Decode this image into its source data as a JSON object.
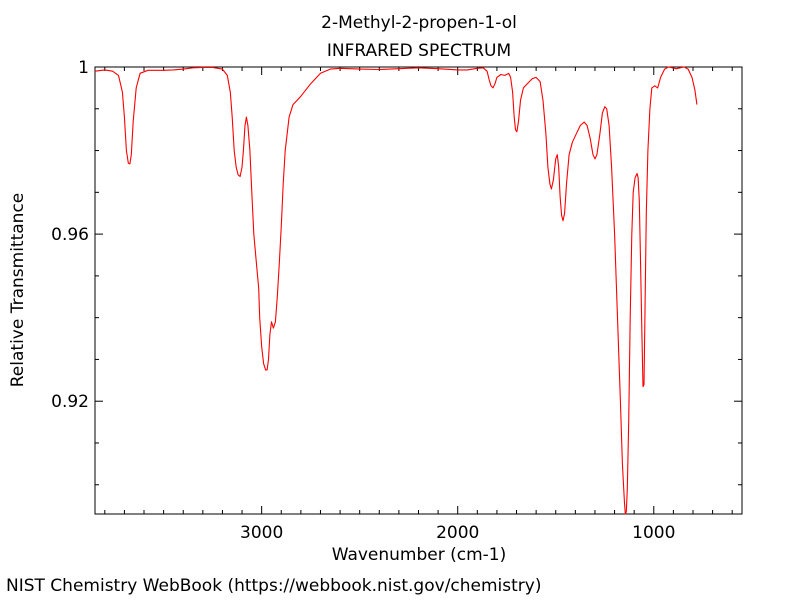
{
  "chart_data": {
    "type": "line",
    "title": "2-Methyl-2-propen-1-ol",
    "subtitle": "INFRARED SPECTRUM",
    "xlabel": "Wavenumber (cm-1)",
    "ylabel": "Relative Transmittance",
    "xlim": [
      3850,
      550
    ],
    "ylim": [
      0.893,
      1.0
    ],
    "x_ticks": [
      3000,
      2000,
      1000
    ],
    "x_tick_labels": [
      "3000",
      "2000",
      "1000"
    ],
    "y_ticks": [
      1.0,
      0.96,
      0.92
    ],
    "y_tick_labels": [
      "1",
      "0.96",
      "0.92"
    ],
    "grid": false,
    "legend": "none",
    "series": [
      {
        "color": "#ff0000",
        "points": [
          [
            3850,
            0.999
          ],
          [
            3800,
            0.9993
          ],
          [
            3760,
            0.999
          ],
          [
            3730,
            0.998
          ],
          [
            3710,
            0.994
          ],
          [
            3700,
            0.988
          ],
          [
            3690,
            0.98
          ],
          [
            3680,
            0.977
          ],
          [
            3672,
            0.9768
          ],
          [
            3665,
            0.979
          ],
          [
            3655,
            0.987
          ],
          [
            3640,
            0.995
          ],
          [
            3620,
            0.9985
          ],
          [
            3580,
            0.9992
          ],
          [
            3500,
            0.9992
          ],
          [
            3450,
            0.9993
          ],
          [
            3400,
            0.9995
          ],
          [
            3350,
            0.9998
          ],
          [
            3300,
            0.9999
          ],
          [
            3250,
            0.9999
          ],
          [
            3200,
            0.9995
          ],
          [
            3175,
            0.998
          ],
          [
            3160,
            0.994
          ],
          [
            3150,
            0.988
          ],
          [
            3140,
            0.98
          ],
          [
            3130,
            0.976
          ],
          [
            3120,
            0.9742
          ],
          [
            3110,
            0.9738
          ],
          [
            3100,
            0.976
          ],
          [
            3093,
            0.98
          ],
          [
            3085,
            0.986
          ],
          [
            3078,
            0.988
          ],
          [
            3070,
            0.986
          ],
          [
            3060,
            0.98
          ],
          [
            3050,
            0.97
          ],
          [
            3040,
            0.96
          ],
          [
            3025,
            0.952
          ],
          [
            3015,
            0.947
          ],
          [
            3010,
            0.94
          ],
          [
            3000,
            0.933
          ],
          [
            2990,
            0.929
          ],
          [
            2980,
            0.9275
          ],
          [
            2972,
            0.9275
          ],
          [
            2965,
            0.93
          ],
          [
            2958,
            0.936
          ],
          [
            2950,
            0.939
          ],
          [
            2940,
            0.9375
          ],
          [
            2930,
            0.939
          ],
          [
            2920,
            0.945
          ],
          [
            2910,
            0.953
          ],
          [
            2900,
            0.962
          ],
          [
            2890,
            0.972
          ],
          [
            2880,
            0.98
          ],
          [
            2860,
            0.988
          ],
          [
            2840,
            0.991
          ],
          [
            2800,
            0.993
          ],
          [
            2750,
            0.996
          ],
          [
            2700,
            0.9985
          ],
          [
            2650,
            0.9995
          ],
          [
            2600,
            0.9997
          ],
          [
            2500,
            0.9995
          ],
          [
            2400,
            0.9994
          ],
          [
            2300,
            0.9996
          ],
          [
            2200,
            0.9998
          ],
          [
            2100,
            0.9996
          ],
          [
            2000,
            0.9993
          ],
          [
            1950,
            0.9993
          ],
          [
            1900,
            0.9997
          ],
          [
            1870,
            0.9998
          ],
          [
            1850,
            0.999
          ],
          [
            1840,
            0.997
          ],
          [
            1830,
            0.9955
          ],
          [
            1820,
            0.995
          ],
          [
            1810,
            0.996
          ],
          [
            1800,
            0.9975
          ],
          [
            1780,
            0.9982
          ],
          [
            1760,
            0.998
          ],
          [
            1740,
            0.9985
          ],
          [
            1730,
            0.9975
          ],
          [
            1720,
            0.994
          ],
          [
            1712,
            0.988
          ],
          [
            1705,
            0.985
          ],
          [
            1698,
            0.9845
          ],
          [
            1690,
            0.987
          ],
          [
            1680,
            0.992
          ],
          [
            1665,
            0.995
          ],
          [
            1645,
            0.996
          ],
          [
            1620,
            0.9972
          ],
          [
            1600,
            0.9975
          ],
          [
            1580,
            0.9965
          ],
          [
            1565,
            0.992
          ],
          [
            1550,
            0.984
          ],
          [
            1540,
            0.976
          ],
          [
            1530,
            0.972
          ],
          [
            1522,
            0.9708
          ],
          [
            1512,
            0.973
          ],
          [
            1500,
            0.978
          ],
          [
            1492,
            0.979
          ],
          [
            1485,
            0.976
          ],
          [
            1478,
            0.969
          ],
          [
            1470,
            0.9645
          ],
          [
            1463,
            0.9632
          ],
          [
            1455,
            0.965
          ],
          [
            1445,
            0.972
          ],
          [
            1432,
            0.979
          ],
          [
            1415,
            0.982
          ],
          [
            1395,
            0.984
          ],
          [
            1375,
            0.986
          ],
          [
            1355,
            0.9868
          ],
          [
            1340,
            0.986
          ],
          [
            1325,
            0.983
          ],
          [
            1310,
            0.979
          ],
          [
            1300,
            0.978
          ],
          [
            1290,
            0.979
          ],
          [
            1275,
            0.984
          ],
          [
            1262,
            0.989
          ],
          [
            1250,
            0.9905
          ],
          [
            1240,
            0.99
          ],
          [
            1228,
            0.986
          ],
          [
            1215,
            0.976
          ],
          [
            1200,
            0.96
          ],
          [
            1185,
            0.94
          ],
          [
            1170,
            0.92
          ],
          [
            1160,
            0.905
          ],
          [
            1150,
            0.896
          ],
          [
            1145,
            0.893
          ],
          [
            1140,
            0.8935
          ],
          [
            1135,
            0.899
          ],
          [
            1128,
            0.915
          ],
          [
            1120,
            0.94
          ],
          [
            1112,
            0.96
          ],
          [
            1105,
            0.97
          ],
          [
            1095,
            0.9735
          ],
          [
            1085,
            0.9745
          ],
          [
            1080,
            0.9735
          ],
          [
            1074,
            0.968
          ],
          [
            1068,
            0.955
          ],
          [
            1060,
            0.935
          ],
          [
            1055,
            0.9235
          ],
          [
            1050,
            0.924
          ],
          [
            1045,
            0.94
          ],
          [
            1038,
            0.965
          ],
          [
            1030,
            0.98
          ],
          [
            1020,
            0.99
          ],
          [
            1010,
            0.995
          ],
          [
            995,
            0.9955
          ],
          [
            980,
            0.995
          ],
          [
            965,
            0.9975
          ],
          [
            945,
            0.9995
          ],
          [
            925,
            1.0
          ],
          [
            905,
            0.9998
          ],
          [
            885,
            0.9996
          ],
          [
            865,
            0.9998
          ],
          [
            845,
            1.0
          ],
          [
            825,
            0.9995
          ],
          [
            805,
            0.9975
          ],
          [
            790,
            0.9945
          ],
          [
            780,
            0.991
          ]
        ]
      }
    ]
  },
  "footer": {
    "credit": "NIST Chemistry WebBook (https://webbook.nist.gov/chemistry)"
  }
}
